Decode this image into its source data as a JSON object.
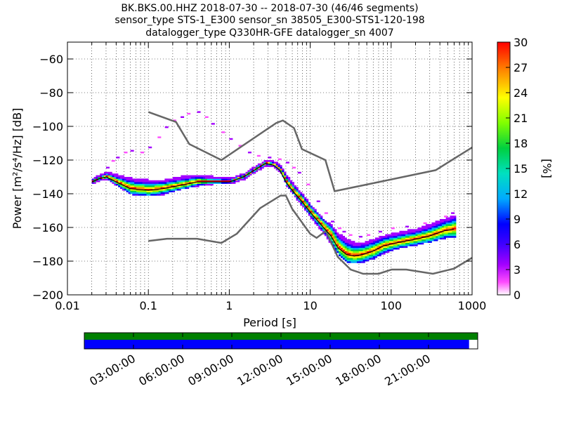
{
  "chart_data": {
    "type": "heatmap",
    "title_lines": [
      "BK.BKS.00.HHZ   2018-07-30 -- 2018-07-30  (46/46 segments)",
      "sensor_type STS-1_E300 sensor_sn 38505_E300-STS1-120-198",
      "datalogger_type Q330HR-GFE datalogger_sn 4007"
    ],
    "xlabel": "Period [s]",
    "ylabel": "Power [m²/s⁴/Hz] [dB]",
    "xscale": "log",
    "xlim": [
      0.01,
      1000
    ],
    "ylim": [
      -200,
      -50
    ],
    "x_tick_labels": [
      "0.01",
      "0.1",
      "1",
      "10",
      "100",
      "1000"
    ],
    "y_tick_labels": [
      "-200",
      "-180",
      "-160",
      "-140",
      "-120",
      "-100",
      "-80",
      "-60"
    ],
    "grid": "dotted",
    "colorbar": {
      "label": "[%]",
      "range": [
        0,
        30
      ],
      "tick_labels": [
        "0",
        "3",
        "6",
        "9",
        "12",
        "15",
        "18",
        "21",
        "24",
        "27",
        "30"
      ],
      "colormap": "pqlx"
    },
    "noise_models": [
      {
        "name": "NHNM",
        "x": [
          0.1,
          0.22,
          0.32,
          0.8,
          3.8,
          4.6,
          6.3,
          7.9,
          15.4,
          20,
          354.8,
          1000
        ],
        "y": [
          -91.5,
          -97.4,
          -110.5,
          -120,
          -98,
          -96.5,
          -101,
          -113.5,
          -120,
          -138.5,
          -126,
          -112.5
        ]
      },
      {
        "name": "NLNM",
        "x": [
          0.1,
          0.17,
          0.4,
          0.8,
          1.24,
          2.4,
          4.3,
          5,
          6,
          10,
          12,
          15.6,
          21.9,
          31.6,
          45,
          70,
          101,
          154,
          328,
          600,
          1000
        ],
        "y": [
          -168,
          -166.7,
          -166.7,
          -169.2,
          -163.7,
          -148.6,
          -141.1,
          -141.1,
          -149,
          -163.8,
          -166.2,
          -162.1,
          -177.5,
          -185,
          -187.5,
          -187.5,
          -185,
          -185,
          -187.5,
          -184.4,
          -178
        ]
      }
    ],
    "mode_curve": {
      "x": [
        0.02,
        0.025,
        0.03,
        0.04,
        0.06,
        0.1,
        0.15,
        0.25,
        0.4,
        0.6,
        1,
        1.5,
        2.2,
        2.8,
        3.5,
        4.2,
        5,
        6,
        8,
        10,
        14,
        18,
        22,
        28,
        35,
        45,
        60,
        80,
        120,
        200,
        300,
        450,
        600
      ],
      "y": [
        -133,
        -131,
        -130,
        -133,
        -137,
        -138,
        -137,
        -135,
        -133,
        -133,
        -133,
        -130,
        -125,
        -122,
        -123,
        -126,
        -133,
        -138,
        -145,
        -151,
        -159,
        -165,
        -172,
        -176,
        -177,
        -176,
        -174,
        -171,
        -169,
        -167,
        -165,
        -162,
        -161
      ]
    },
    "psd_spread": {
      "x": [
        0.02,
        0.025,
        0.03,
        0.04,
        0.06,
        0.1,
        0.15,
        0.25,
        0.4,
        0.6,
        1,
        1.5,
        2.2,
        2.8,
        3.5,
        4.2,
        5,
        6,
        8,
        10,
        14,
        18,
        22,
        28,
        35,
        45,
        60,
        80,
        120,
        200,
        300,
        450,
        600
      ],
      "low": [
        -134,
        -132,
        -131,
        -135,
        -140,
        -141,
        -140,
        -137,
        -135,
        -134,
        -134,
        -131,
        -126,
        -123,
        -124,
        -127,
        -135,
        -140,
        -148,
        -154,
        -163,
        -170,
        -176,
        -180,
        -181,
        -180,
        -178,
        -175,
        -172,
        -170,
        -168,
        -166,
        -166
      ],
      "high": [
        -132,
        -130,
        -128,
        -130,
        -132,
        -133,
        -133,
        -131,
        -130,
        -131,
        -132,
        -129,
        -124,
        -121,
        -122,
        -124,
        -130,
        -135,
        -142,
        -148,
        -156,
        -160,
        -165,
        -168,
        -170,
        -170,
        -168,
        -166,
        -164,
        -162,
        -159,
        -156,
        -154
      ]
    },
    "outliers": {
      "x": [
        0.03,
        0.035,
        0.04,
        0.05,
        0.06,
        0.08,
        0.1,
        0.13,
        0.16,
        0.2,
        0.25,
        0.3,
        0.4,
        0.5,
        0.6,
        0.8,
        1.0,
        1.3,
        1.7,
        2.2,
        3,
        4,
        5,
        6,
        7,
        9,
        12,
        15,
        18,
        22,
        25,
        30,
        40,
        50,
        70,
        100,
        150,
        250,
        350,
        450,
        550
      ],
      "y": [
        -125,
        -121,
        -119,
        -116,
        -115,
        -116,
        -113,
        -107,
        -101,
        -97,
        -95,
        -93,
        -92,
        -95,
        -99,
        -104,
        -108,
        -112,
        -116,
        -118,
        -119,
        -120,
        -122,
        -125,
        -128,
        -135,
        -145,
        -152,
        -157,
        -161,
        -163,
        -165,
        -166,
        -165,
        -163,
        -161,
        -160,
        -158,
        -157,
        -154,
        -152
      ]
    },
    "timeline": {
      "tick_labels": [
        "03:00:00",
        "06:00:00",
        "09:00:00",
        "12:00:00",
        "15:00:00",
        "18:00:00",
        "21:00:00"
      ],
      "tick_hours": [
        3,
        6,
        9,
        12,
        15,
        18,
        21
      ],
      "range_hours": [
        0,
        24
      ],
      "data_coverage_fraction": 1.0,
      "psd_coverage_fraction": 0.978,
      "data_color": "#008000",
      "psd_color": "#0000ff"
    }
  }
}
